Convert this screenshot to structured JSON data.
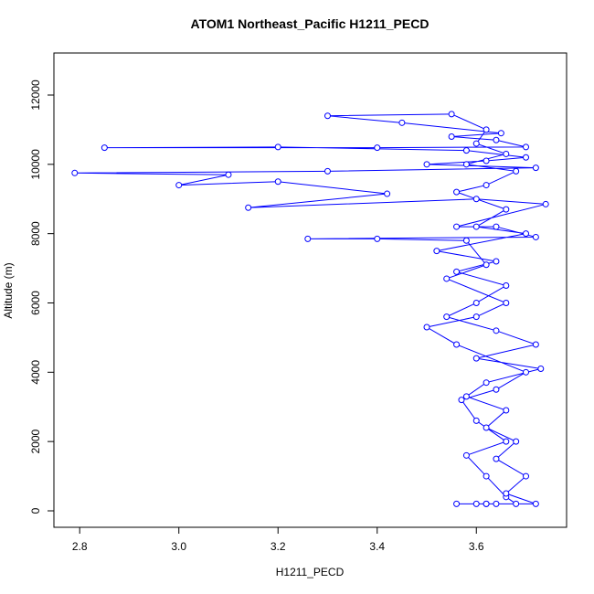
{
  "chart_data": {
    "type": "line",
    "title": "ATOM1 Northeast_Pacific H1211_PECD",
    "x_label": "H1211_PECD",
    "y_label": "Altitude (m)",
    "color": "#0000ff",
    "marker": "circle",
    "x": [
      3.62,
      3.6,
      3.64,
      3.68,
      3.66,
      3.62,
      3.58,
      3.66,
      3.6,
      3.57,
      3.64,
      3.7,
      3.56,
      3.5,
      3.6,
      3.66,
      3.54,
      3.62,
      3.58,
      3.4,
      3.26,
      3.72,
      3.64,
      3.56,
      3.74,
      3.6,
      3.14,
      3.42,
      3.2,
      3.0,
      3.1,
      2.79,
      3.3,
      3.72,
      3.5,
      3.62,
      3.7,
      3.58,
      3.2,
      2.85,
      3.4,
      3.7,
      3.64,
      3.55,
      3.65,
      3.45,
      3.3,
      3.55,
      3.62,
      3.6,
      3.66,
      3.58,
      3.68,
      3.62,
      3.56,
      3.66,
      3.6,
      3.7,
      3.52,
      3.64,
      3.56,
      3.66,
      3.6,
      3.54,
      3.64,
      3.72,
      3.6,
      3.73,
      3.62,
      3.58,
      3.66,
      3.62,
      3.68,
      3.64,
      3.7,
      3.66,
      3.72,
      3.56,
      3.62
    ],
    "values": [
      200,
      200,
      200,
      200,
      400,
      1000,
      1600,
      2000,
      2600,
      3200,
      3500,
      4000,
      4800,
      5300,
      5600,
      6000,
      6700,
      7100,
      7800,
      7850,
      7850,
      7900,
      8200,
      8200,
      8850,
      9000,
      8750,
      9150,
      9500,
      9400,
      9700,
      9750,
      9800,
      9900,
      10000,
      10100,
      10200,
      10400,
      10500,
      10480,
      10480,
      10500,
      10700,
      10800,
      10900,
      11200,
      11400,
      11450,
      11000,
      10600,
      10300,
      10000,
      9800,
      9400,
      9200,
      8700,
      8200,
      8000,
      7500,
      7200,
      6900,
      6500,
      6000,
      5600,
      5200,
      4800,
      4400,
      4100,
      3700,
      3300,
      2900,
      2400,
      2000,
      1500,
      1000,
      500,
      200,
      200,
      200
    ],
    "xlim": [
      2.748,
      3.782
    ],
    "ylim": [
      -475,
      13213
    ],
    "xticks": [
      2.8,
      {
        "value": 3,
        "label": "3.0"
      },
      3.2,
      3.4,
      3.6
    ],
    "yticks": [
      0,
      2000,
      4000,
      6000,
      8000,
      10000,
      12000
    ]
  }
}
